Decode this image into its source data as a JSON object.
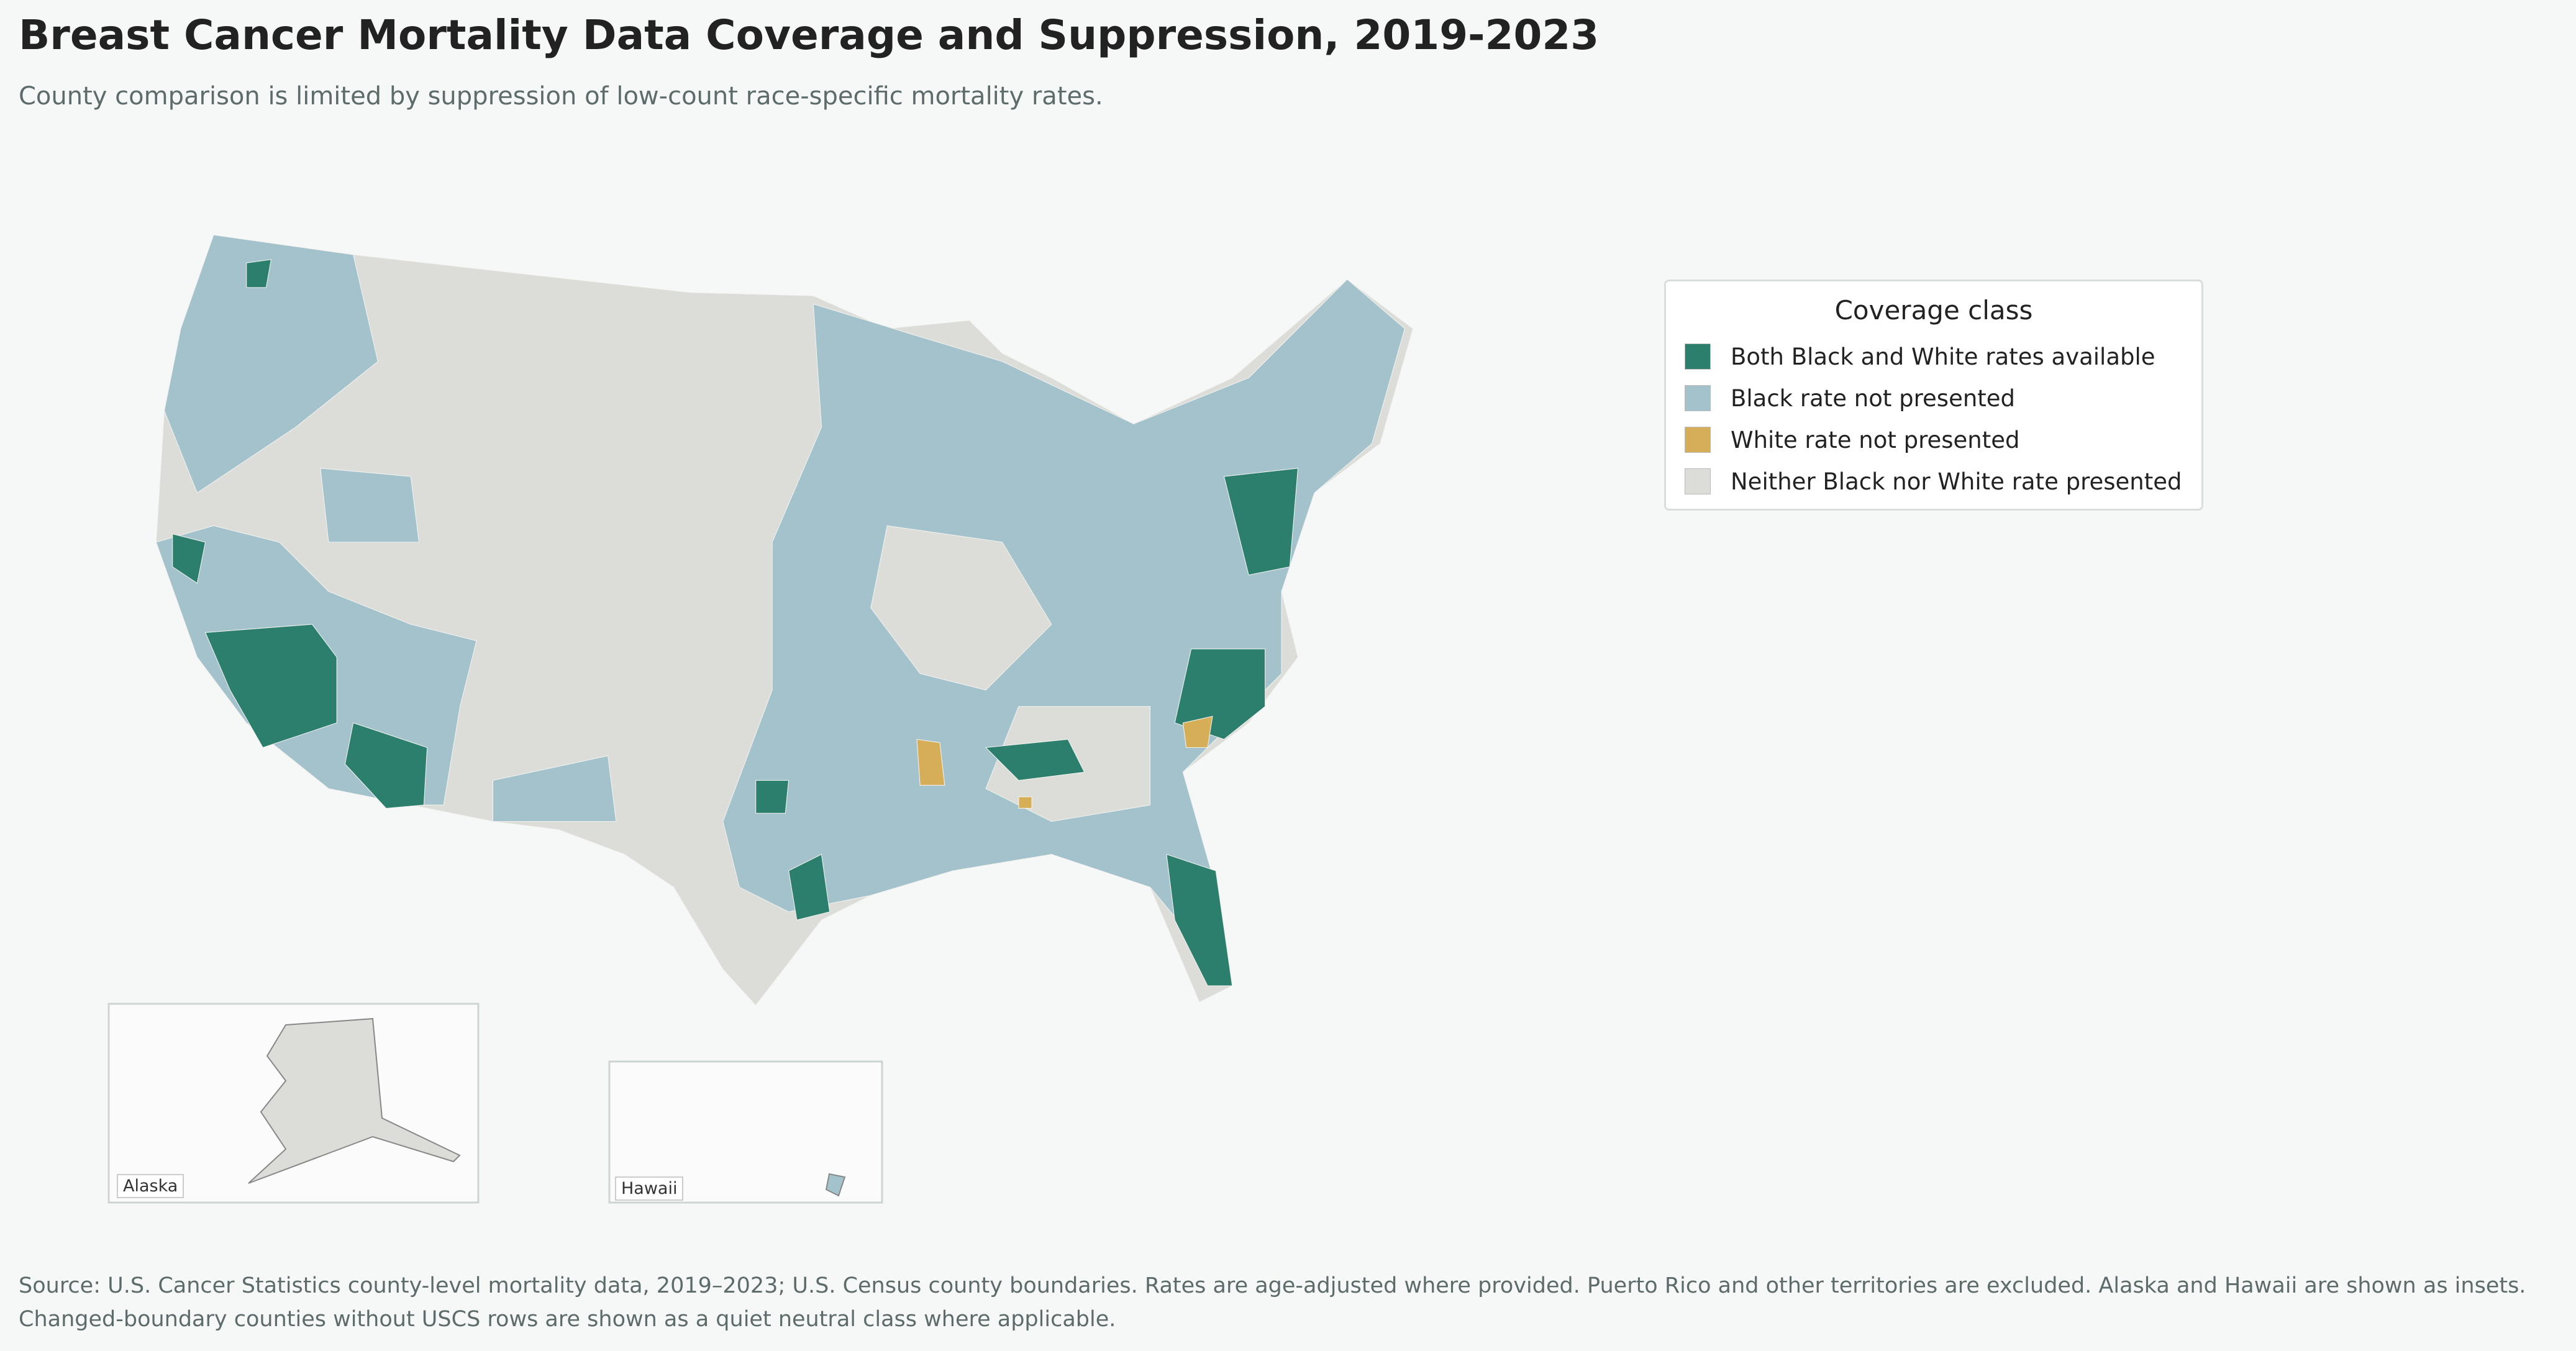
{
  "header": {
    "title": "Breast Cancer Mortality Data Coverage and Suppression, 2019-2023",
    "subtitle": "County comparison is limited by suppression of low-count race-specific mortality rates."
  },
  "legend": {
    "title": "Coverage class",
    "items": [
      {
        "label": "Both Black and White rates available",
        "color": "#2d7f6d"
      },
      {
        "label": "Black rate not presented",
        "color": "#a3c2cc"
      },
      {
        "label": "White rate not presented",
        "color": "#d6ae57"
      },
      {
        "label": "Neither Black nor White rate presented",
        "color": "#dcdcd8"
      }
    ]
  },
  "insets": {
    "alaska": "Alaska",
    "hawaii": "Hawaii"
  },
  "footer": [
    "Source: U.S. Cancer Statistics county-level mortality data, 2019–2023; U.S. Census county boundaries. Rates are age-adjusted where provided. Puerto Rico and other territories are excluded. Alaska and Hawaii are shown as insets.",
    "Changed-boundary counties without USCS rows are shown as a quiet neutral class where applicable."
  ]
}
